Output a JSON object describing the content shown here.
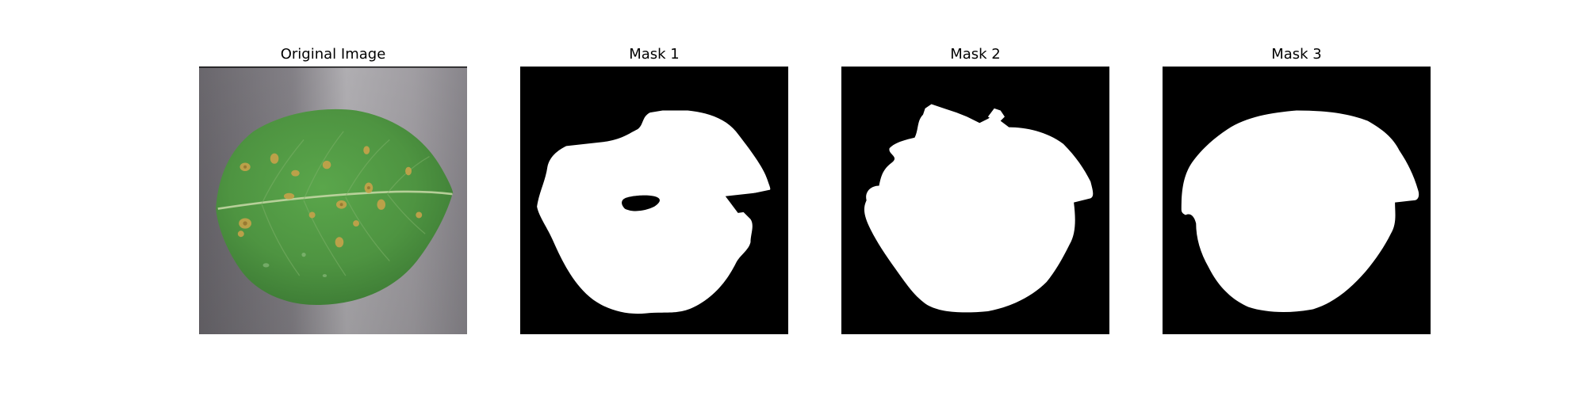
{
  "figure": {
    "panels": [
      {
        "title": "Original Image"
      },
      {
        "title": "Mask 1"
      },
      {
        "title": "Mask 2"
      },
      {
        "title": "Mask 3"
      }
    ]
  },
  "colors": {
    "background": "#ffffff",
    "mask_foreground": "#ffffff",
    "mask_background": "#000000",
    "leaf_green": "#4e9441",
    "surface_gray": "#8f8c92"
  }
}
